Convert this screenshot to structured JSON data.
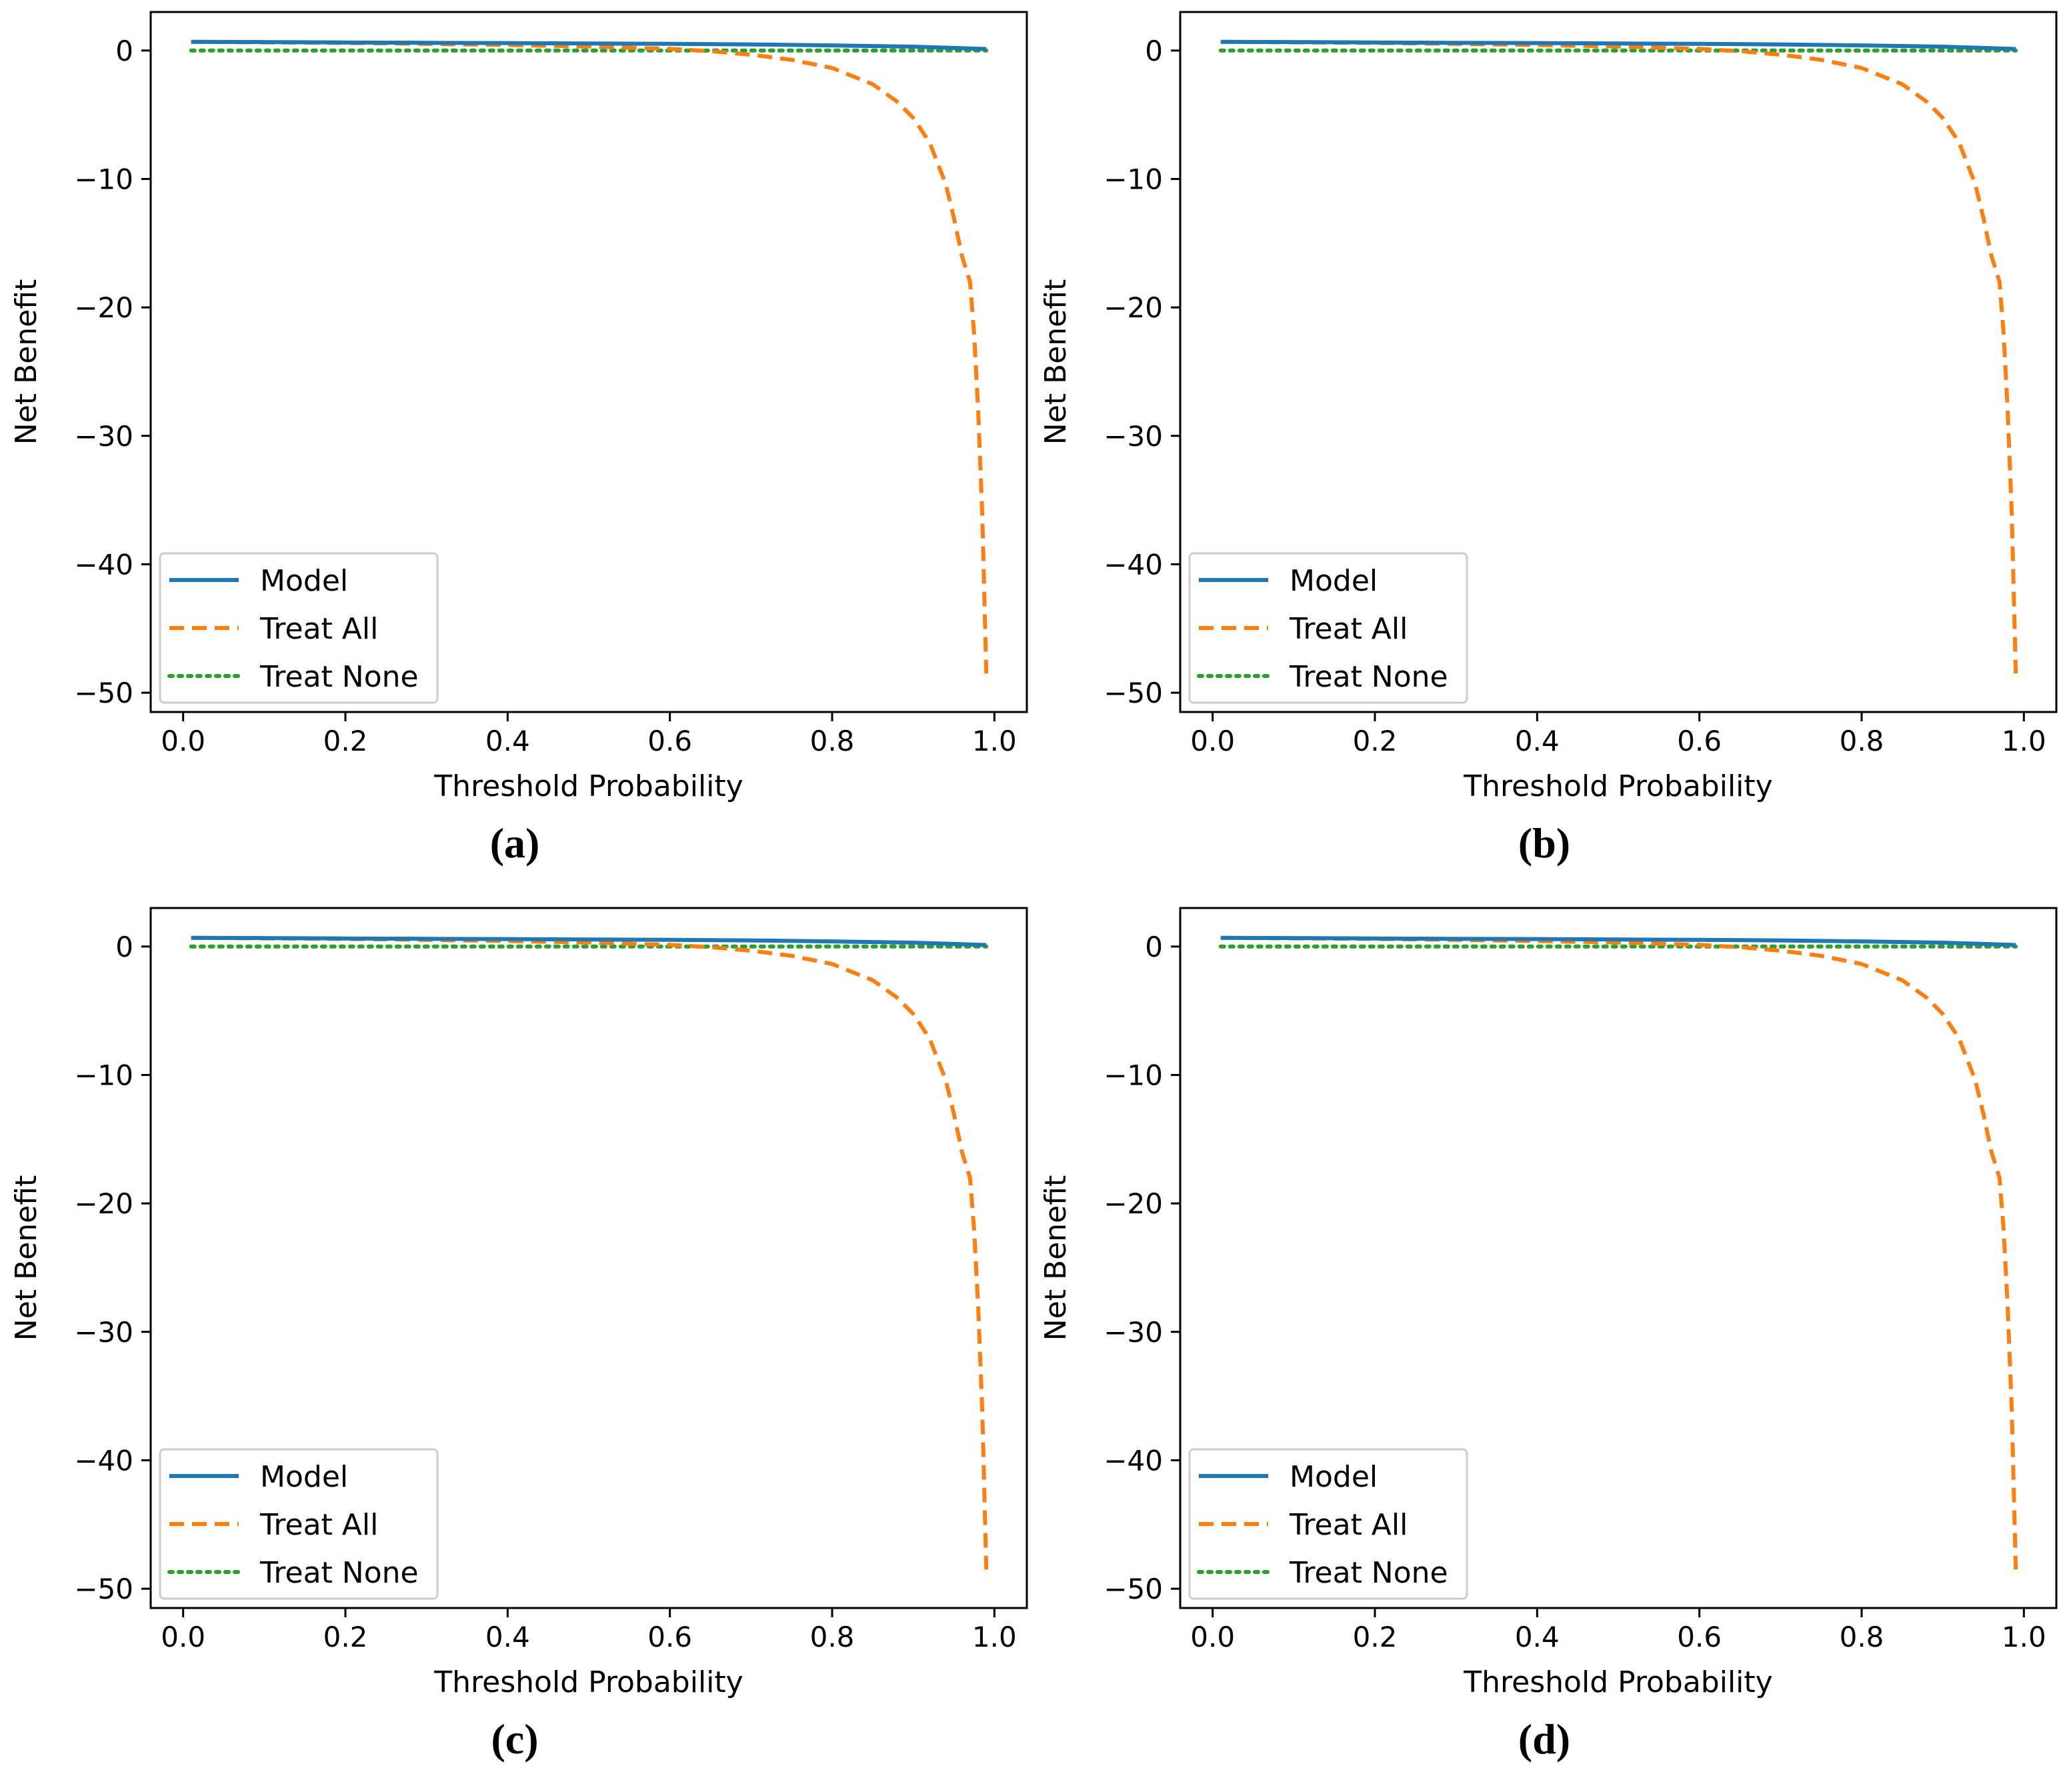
{
  "figure": {
    "panels": [
      {
        "caption": "(a)"
      },
      {
        "caption": "(b)"
      },
      {
        "caption": "(c)"
      },
      {
        "caption": "(d)"
      }
    ]
  },
  "colors": {
    "model": "#1f77b4",
    "treat_all": "#ff7f0e",
    "treat_none": "#2ca02c",
    "axes": "#000000",
    "legend_border": "#cccccc"
  },
  "chart_data": [
    {
      "type": "line",
      "caption": "(a)",
      "xlabel": "Threshold Probability",
      "ylabel": "Net Benefit",
      "xlim": [
        -0.04,
        1.04
      ],
      "ylim": [
        -51.5,
        3.0
      ],
      "xticks": [
        0.0,
        0.2,
        0.4,
        0.6,
        0.8,
        1.0
      ],
      "xtick_labels": [
        "0.0",
        "0.2",
        "0.4",
        "0.6",
        "0.8",
        "1.0"
      ],
      "yticks": [
        0,
        -10,
        -20,
        -30,
        -40,
        -50
      ],
      "ytick_labels": [
        "0",
        "−10",
        "−20",
        "−30",
        "−40",
        "−50"
      ],
      "legend": {
        "position": "lower-left",
        "entries": [
          "Model",
          "Treat All",
          "Treat None"
        ]
      },
      "series": [
        {
          "name": "Model",
          "style": "solid",
          "x": [
            0.01,
            0.1,
            0.2,
            0.3,
            0.4,
            0.5,
            0.6,
            0.7,
            0.8,
            0.9,
            0.95,
            0.99
          ],
          "y": [
            0.68,
            0.66,
            0.63,
            0.6,
            0.58,
            0.55,
            0.52,
            0.48,
            0.4,
            0.3,
            0.2,
            0.12
          ]
        },
        {
          "name": "Treat All",
          "style": "dashed",
          "x": [
            0.01,
            0.1,
            0.2,
            0.3,
            0.4,
            0.5,
            0.6,
            0.65,
            0.7,
            0.75,
            0.8,
            0.85,
            0.88,
            0.9,
            0.92,
            0.94,
            0.95,
            0.96,
            0.97,
            0.975,
            0.98,
            0.985,
            0.99
          ],
          "y": [
            0.68,
            0.64,
            0.59,
            0.52,
            0.43,
            0.31,
            0.13,
            -0.05,
            -0.32,
            -0.72,
            -1.36,
            -2.62,
            -3.97,
            -5.25,
            -7.14,
            -10.38,
            -13.0,
            -16.0,
            -18.0,
            -22.0,
            -28.0,
            -36.0,
            -48.5
          ]
        },
        {
          "name": "Treat None",
          "style": "dotted",
          "x": [
            0.01,
            0.99
          ],
          "y": [
            0.0,
            0.0
          ]
        }
      ]
    },
    {
      "type": "line",
      "caption": "(b)",
      "xlabel": "Threshold Probability",
      "ylabel": "Net Benefit",
      "xlim": [
        -0.04,
        1.04
      ],
      "ylim": [
        -51.5,
        3.0
      ],
      "xticks": [
        0.0,
        0.2,
        0.4,
        0.6,
        0.8,
        1.0
      ],
      "xtick_labels": [
        "0.0",
        "0.2",
        "0.4",
        "0.6",
        "0.8",
        "1.0"
      ],
      "yticks": [
        0,
        -10,
        -20,
        -30,
        -40,
        -50
      ],
      "ytick_labels": [
        "0",
        "−10",
        "−20",
        "−30",
        "−40",
        "−50"
      ],
      "legend": {
        "position": "lower-left",
        "entries": [
          "Model",
          "Treat All",
          "Treat None"
        ]
      },
      "series": [
        {
          "name": "Model",
          "style": "solid",
          "x": [
            0.01,
            0.1,
            0.2,
            0.3,
            0.4,
            0.5,
            0.6,
            0.7,
            0.8,
            0.9,
            0.95,
            0.99
          ],
          "y": [
            0.68,
            0.66,
            0.63,
            0.6,
            0.58,
            0.55,
            0.52,
            0.48,
            0.4,
            0.3,
            0.2,
            0.12
          ]
        },
        {
          "name": "Treat All",
          "style": "dashed",
          "x": [
            0.01,
            0.1,
            0.2,
            0.3,
            0.4,
            0.5,
            0.6,
            0.65,
            0.7,
            0.75,
            0.8,
            0.85,
            0.88,
            0.9,
            0.92,
            0.94,
            0.95,
            0.96,
            0.97,
            0.975,
            0.98,
            0.985,
            0.99
          ],
          "y": [
            0.68,
            0.64,
            0.59,
            0.52,
            0.43,
            0.31,
            0.13,
            -0.05,
            -0.32,
            -0.72,
            -1.36,
            -2.62,
            -3.97,
            -5.25,
            -7.14,
            -10.38,
            -13.0,
            -16.0,
            -18.0,
            -22.0,
            -28.0,
            -36.0,
            -48.5
          ]
        },
        {
          "name": "Treat None",
          "style": "dotted",
          "x": [
            0.01,
            0.99
          ],
          "y": [
            0.0,
            0.0
          ]
        }
      ]
    },
    {
      "type": "line",
      "caption": "(c)",
      "xlabel": "Threshold Probability",
      "ylabel": "Net Benefit",
      "xlim": [
        -0.04,
        1.04
      ],
      "ylim": [
        -51.5,
        3.0
      ],
      "xticks": [
        0.0,
        0.2,
        0.4,
        0.6,
        0.8,
        1.0
      ],
      "xtick_labels": [
        "0.0",
        "0.2",
        "0.4",
        "0.6",
        "0.8",
        "1.0"
      ],
      "yticks": [
        0,
        -10,
        -20,
        -30,
        -40,
        -50
      ],
      "ytick_labels": [
        "0",
        "−10",
        "−20",
        "−30",
        "−40",
        "−50"
      ],
      "legend": {
        "position": "lower-left",
        "entries": [
          "Model",
          "Treat All",
          "Treat None"
        ]
      },
      "series": [
        {
          "name": "Model",
          "style": "solid",
          "x": [
            0.01,
            0.1,
            0.2,
            0.3,
            0.4,
            0.5,
            0.6,
            0.7,
            0.8,
            0.9,
            0.95,
            0.99
          ],
          "y": [
            0.68,
            0.66,
            0.63,
            0.6,
            0.58,
            0.55,
            0.52,
            0.48,
            0.4,
            0.3,
            0.2,
            0.12
          ]
        },
        {
          "name": "Treat All",
          "style": "dashed",
          "x": [
            0.01,
            0.1,
            0.2,
            0.3,
            0.4,
            0.5,
            0.6,
            0.65,
            0.7,
            0.75,
            0.8,
            0.85,
            0.88,
            0.9,
            0.92,
            0.94,
            0.95,
            0.96,
            0.97,
            0.975,
            0.98,
            0.985,
            0.99
          ],
          "y": [
            0.68,
            0.64,
            0.59,
            0.52,
            0.43,
            0.31,
            0.13,
            -0.05,
            -0.32,
            -0.72,
            -1.36,
            -2.62,
            -3.97,
            -5.25,
            -7.14,
            -10.38,
            -13.0,
            -16.0,
            -18.0,
            -22.0,
            -28.0,
            -36.0,
            -48.5
          ]
        },
        {
          "name": "Treat None",
          "style": "dotted",
          "x": [
            0.01,
            0.99
          ],
          "y": [
            0.0,
            0.0
          ]
        }
      ]
    },
    {
      "type": "line",
      "caption": "(d)",
      "xlabel": "Threshold Probability",
      "ylabel": "Net Benefit",
      "xlim": [
        -0.04,
        1.04
      ],
      "ylim": [
        -51.5,
        3.0
      ],
      "xticks": [
        0.0,
        0.2,
        0.4,
        0.6,
        0.8,
        1.0
      ],
      "xtick_labels": [
        "0.0",
        "0.2",
        "0.4",
        "0.6",
        "0.8",
        "1.0"
      ],
      "yticks": [
        0,
        -10,
        -20,
        -30,
        -40,
        -50
      ],
      "ytick_labels": [
        "0",
        "−10",
        "−20",
        "−30",
        "−40",
        "−50"
      ],
      "legend": {
        "position": "lower-left",
        "entries": [
          "Model",
          "Treat All",
          "Treat None"
        ]
      },
      "series": [
        {
          "name": "Model",
          "style": "solid",
          "x": [
            0.01,
            0.1,
            0.2,
            0.3,
            0.4,
            0.5,
            0.6,
            0.7,
            0.8,
            0.9,
            0.95,
            0.99
          ],
          "y": [
            0.68,
            0.66,
            0.63,
            0.6,
            0.58,
            0.55,
            0.52,
            0.48,
            0.4,
            0.3,
            0.2,
            0.12
          ]
        },
        {
          "name": "Treat All",
          "style": "dashed",
          "x": [
            0.01,
            0.1,
            0.2,
            0.3,
            0.4,
            0.5,
            0.6,
            0.65,
            0.7,
            0.75,
            0.8,
            0.85,
            0.88,
            0.9,
            0.92,
            0.94,
            0.95,
            0.96,
            0.97,
            0.975,
            0.98,
            0.985,
            0.99
          ],
          "y": [
            0.68,
            0.64,
            0.59,
            0.52,
            0.43,
            0.31,
            0.13,
            -0.05,
            -0.32,
            -0.72,
            -1.36,
            -2.62,
            -3.97,
            -5.25,
            -7.14,
            -10.38,
            -13.0,
            -16.0,
            -18.0,
            -22.0,
            -28.0,
            -36.0,
            -48.5
          ]
        },
        {
          "name": "Treat None",
          "style": "dotted",
          "x": [
            0.01,
            0.99
          ],
          "y": [
            0.0,
            0.0
          ]
        }
      ]
    }
  ]
}
